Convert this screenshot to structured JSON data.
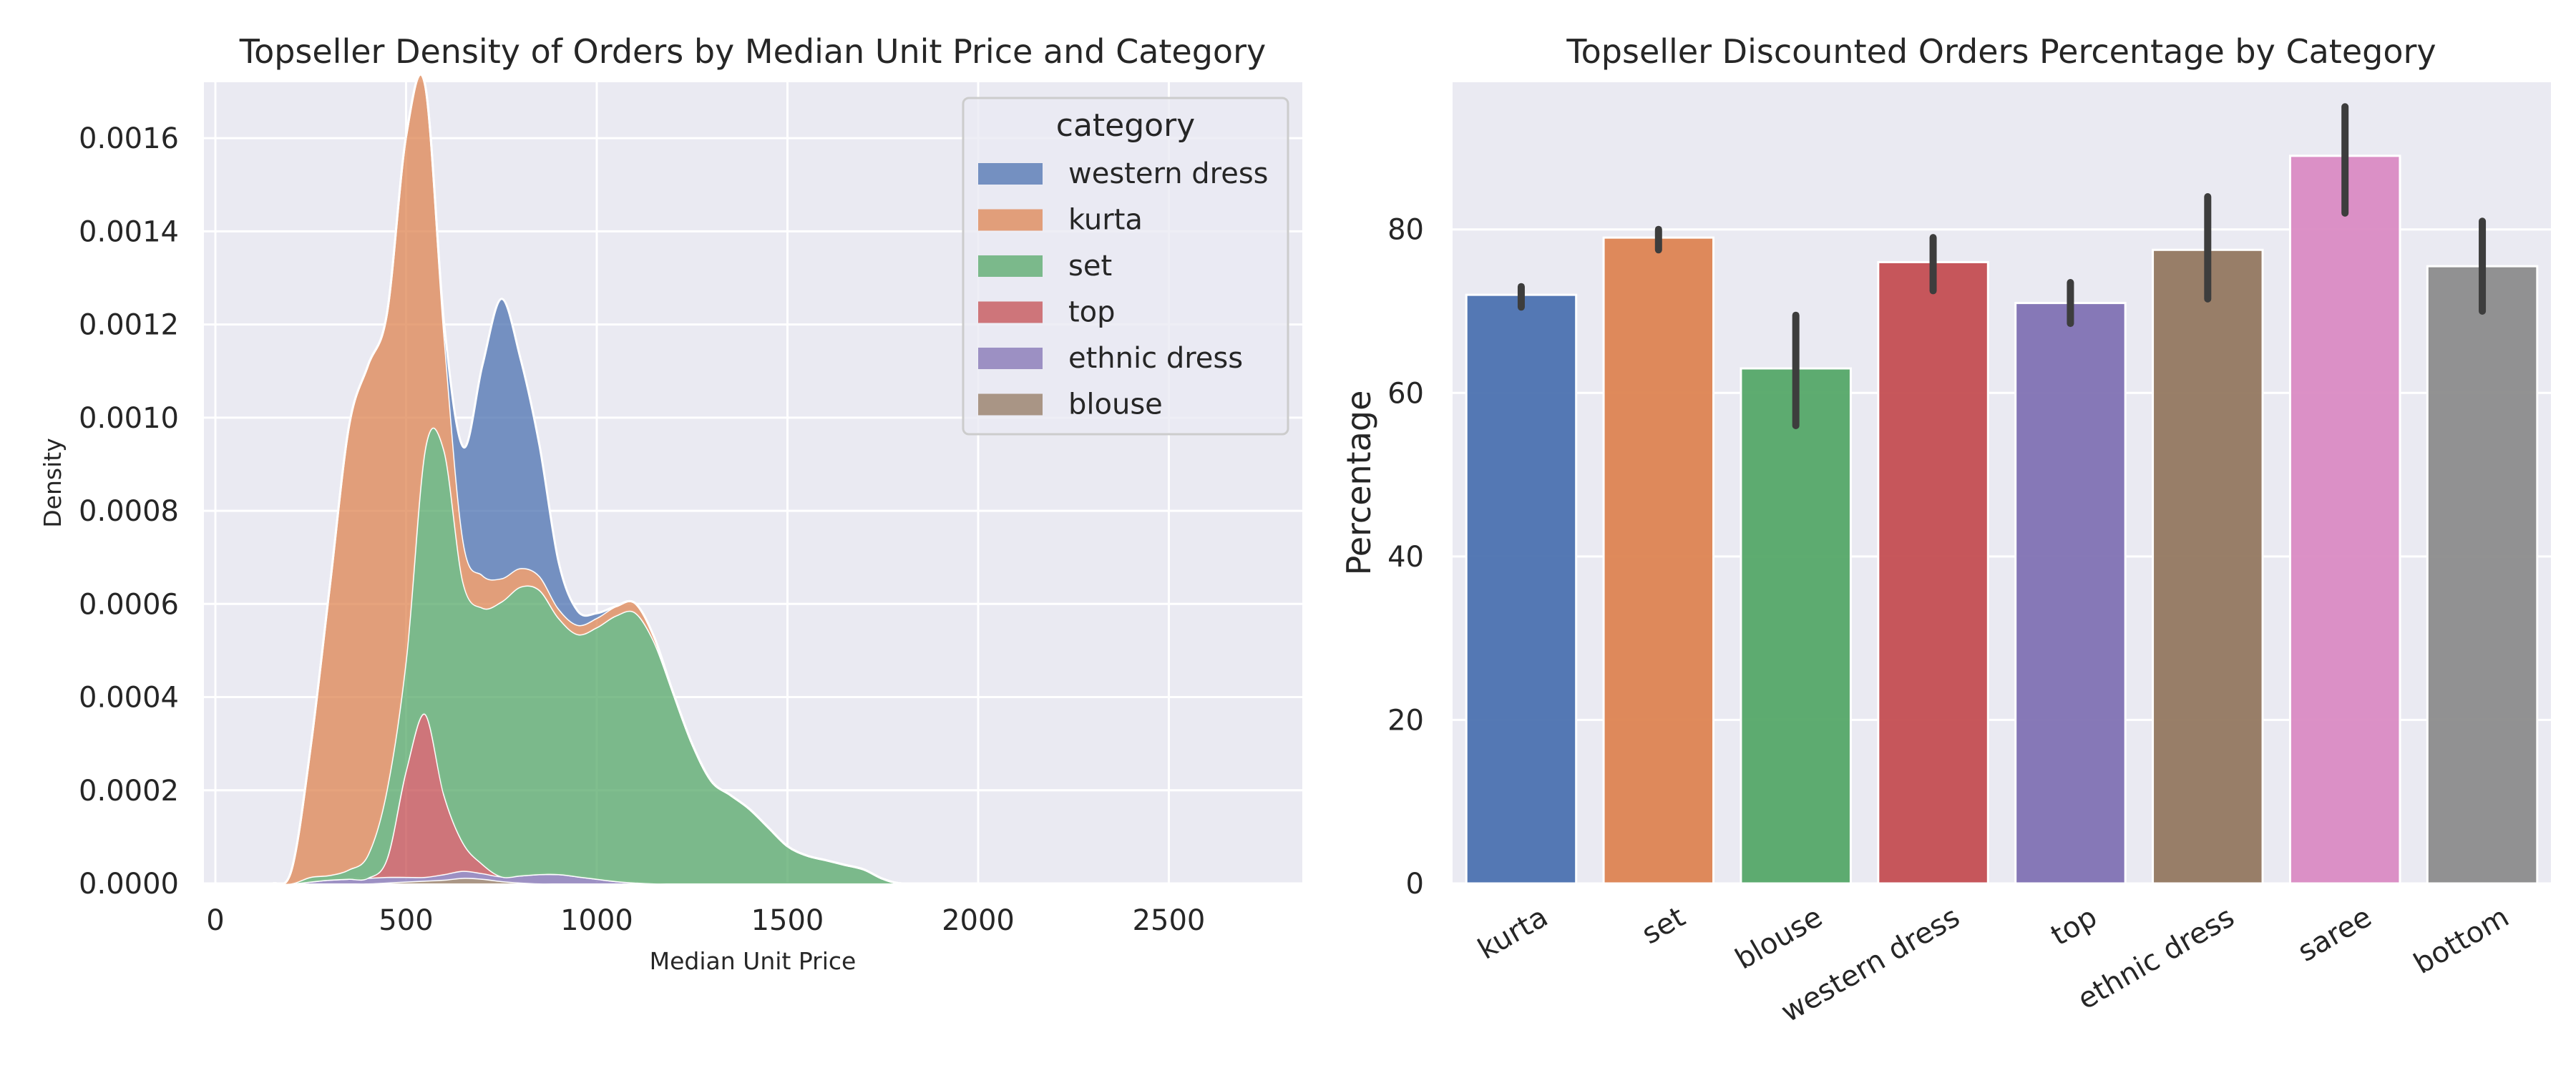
{
  "chart_data": [
    {
      "type": "area",
      "title": "Topseller Density of Orders by Median Unit Price and Category",
      "xlabel": "Median Unit Price",
      "ylabel": "Density",
      "xlim": [
        -30,
        2850
      ],
      "ylim": [
        0,
        0.00172
      ],
      "xticks": [
        0,
        500,
        1000,
        1500,
        2000,
        2500
      ],
      "xtick_labels": [
        "0",
        "500",
        "1000",
        "1500",
        "2000",
        "2500"
      ],
      "yticks": [
        0,
        0.0002,
        0.0004,
        0.0006,
        0.0008,
        0.001,
        0.0012,
        0.0014,
        0.0016
      ],
      "ytick_labels": [
        "0.0000",
        "0.0002",
        "0.0004",
        "0.0006",
        "0.0008",
        "0.0010",
        "0.0012",
        "0.0014",
        "0.0016"
      ],
      "grid": true,
      "stacked": true,
      "legend": {
        "title": "category",
        "placement": "top-right"
      },
      "x": [
        0,
        100,
        150,
        200,
        250,
        300,
        350,
        400,
        450,
        500,
        550,
        600,
        650,
        700,
        750,
        800,
        850,
        900,
        950,
        1000,
        1050,
        1100,
        1150,
        1200,
        1250,
        1300,
        1350,
        1400,
        1450,
        1500,
        1550,
        1600,
        1650,
        1700,
        1750,
        1800,
        1900,
        2000,
        2200,
        2500,
        2650,
        2700,
        2800
      ],
      "series": [
        {
          "name": "western dress",
          "color": "#4c72b0",
          "values": [
            0,
            0,
            0,
            0,
            0,
            0,
            0,
            0,
            0,
            0,
            0,
            2e-05,
            0.0002,
            0.00045,
            0.0006,
            0.00045,
            0.00028,
            0.0001,
            3e-05,
            1e-05,
            0,
            0,
            0,
            0,
            0,
            0,
            0,
            0,
            0,
            0,
            0,
            0,
            0,
            0,
            0,
            0,
            0,
            0,
            0,
            0,
            0,
            0,
            0
          ]
        },
        {
          "name": "kurta",
          "color": "#dd8452",
          "values": [
            0,
            0,
            0,
            3e-05,
            0.00028,
            0.00062,
            0.00095,
            0.00105,
            0.00102,
            0.00112,
            0.00078,
            0.00025,
            9e-05,
            7e-05,
            5e-05,
            4e-05,
            3e-05,
            2e-05,
            2e-05,
            2e-05,
            2e-05,
            2e-05,
            1e-05,
            0,
            0,
            0,
            0,
            0,
            0,
            0,
            0,
            0,
            0,
            0,
            0,
            0,
            0,
            0,
            0,
            0,
            0,
            0,
            0
          ]
        },
        {
          "name": "set",
          "color": "#55a868",
          "values": [
            0,
            0,
            0,
            0,
            1e-05,
            1e-05,
            2e-05,
            5e-05,
            0.00015,
            0.00024,
            0.00057,
            0.00074,
            0.00056,
            0.00055,
            0.00059,
            0.00062,
            0.00061,
            0.00055,
            0.00052,
            0.00054,
            0.00057,
            0.00058,
            0.00052,
            0.00041,
            0.0003,
            0.00022,
            0.00019,
            0.00016,
            0.00012,
            8e-05,
            6e-05,
            5e-05,
            4e-05,
            3e-05,
            1e-05,
            0,
            0,
            0,
            0,
            0,
            0,
            0,
            0
          ]
        },
        {
          "name": "top",
          "color": "#c44e52",
          "values": [
            0,
            0,
            0,
            0,
            0,
            0,
            0,
            0,
            4e-05,
            0.00023,
            0.00035,
            0.00017,
            6e-05,
            2e-05,
            0,
            0,
            0,
            0,
            0,
            0,
            0,
            0,
            0,
            0,
            0,
            0,
            0,
            0,
            0,
            0,
            0,
            0,
            0,
            0,
            0,
            0,
            0,
            0,
            0,
            0,
            0,
            0,
            0
          ]
        },
        {
          "name": "ethnic dress",
          "color": "#8172b3",
          "values": [
            0,
            0,
            0,
            0,
            4e-06,
            8e-06,
            1e-05,
            1.2e-05,
            1.2e-05,
            1e-05,
            8e-06,
            1.2e-05,
            1.5e-05,
            1.2e-05,
            1e-05,
            1.5e-05,
            2e-05,
            2e-05,
            1.5e-05,
            1e-05,
            5e-06,
            2e-06,
            0,
            0,
            0,
            0,
            0,
            0,
            0,
            0,
            0,
            0,
            0,
            0,
            0,
            0,
            0,
            0,
            0,
            0,
            0,
            0,
            0
          ]
        },
        {
          "name": "blouse",
          "color": "#937860",
          "values": [
            0,
            0,
            0,
            0,
            0,
            0,
            0,
            0,
            2e-06,
            4e-06,
            6e-06,
            8e-06,
            1.2e-05,
            1e-05,
            5e-06,
            2e-06,
            0,
            0,
            0,
            0,
            0,
            0,
            0,
            0,
            0,
            0,
            0,
            0,
            0,
            0,
            0,
            0,
            0,
            0,
            0,
            0,
            0,
            0,
            0,
            0,
            0,
            0,
            0
          ]
        }
      ]
    },
    {
      "type": "bar",
      "title": "Topseller Discounted Orders Percentage by Category",
      "xlabel": "",
      "ylabel": "Percentage",
      "ylim": [
        0,
        98
      ],
      "yticks": [
        0,
        20,
        40,
        60,
        80
      ],
      "ytick_labels": [
        "0",
        "20",
        "40",
        "60",
        "80"
      ],
      "grid": true,
      "categories": [
        "kurta",
        "set",
        "blouse",
        "western dress",
        "top",
        "ethnic dress",
        "saree",
        "bottom"
      ],
      "values": [
        72,
        79,
        63,
        76,
        71,
        77.5,
        89,
        75.5
      ],
      "error_low": [
        70.5,
        77.5,
        56,
        72.5,
        68.5,
        71.5,
        82,
        70
      ],
      "error_high": [
        73,
        80,
        69.5,
        79,
        73.5,
        84,
        95,
        81
      ],
      "colors": [
        "#4c72b0",
        "#dd8452",
        "#55a868",
        "#c44e52",
        "#8172b3",
        "#937860",
        "#da8bc3",
        "#8c8c8c"
      ]
    }
  ]
}
